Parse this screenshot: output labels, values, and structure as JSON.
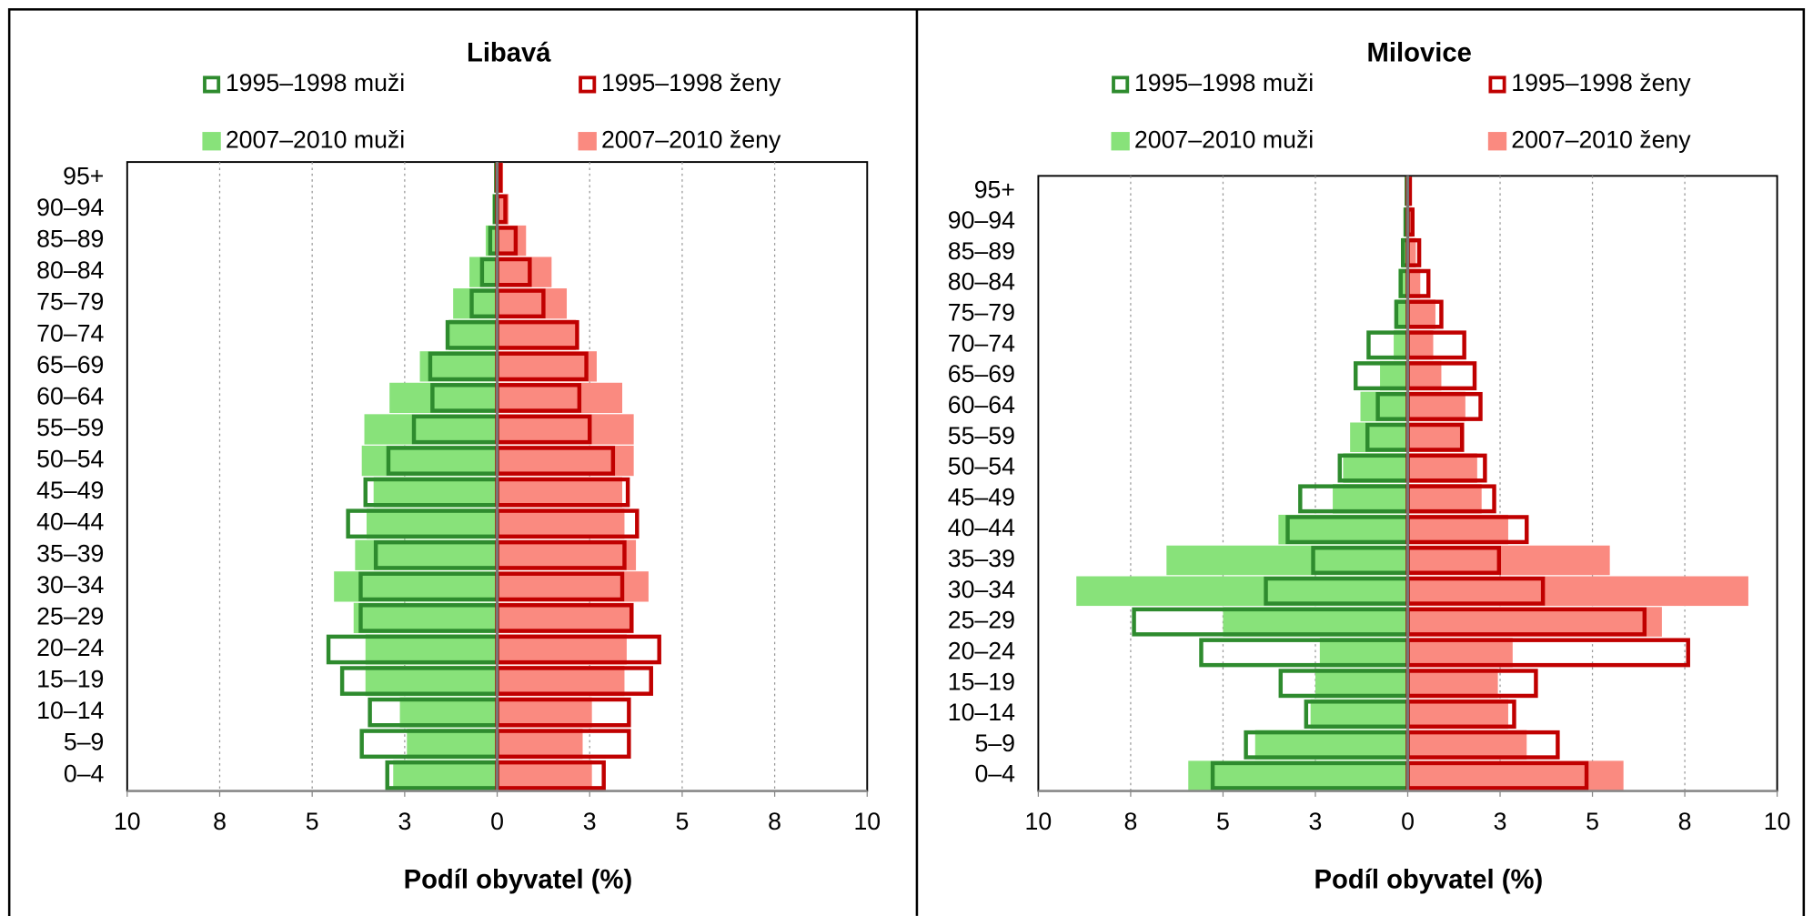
{
  "chart_data": [
    {
      "type": "pyramid",
      "title": "Libavá",
      "xlabel": "Podíl obyvatel (%)",
      "categories": [
        "0–4",
        "5–9",
        "10–14",
        "15–19",
        "20–24",
        "25–29",
        "30–34",
        "35–39",
        "40–44",
        "45–49",
        "50–54",
        "55–59",
        "60–64",
        "65–69",
        "70–74",
        "75–79",
        "80–84",
        "85–89",
        "90–94",
        "95+"
      ],
      "xlim": [
        -10,
        10
      ],
      "xticks": [
        {
          "value": -10,
          "label": "10"
        },
        {
          "value": -7.5,
          "label": "8"
        },
        {
          "value": -5,
          "label": "5"
        },
        {
          "value": -2.5,
          "label": "3"
        },
        0,
        {
          "value": 2.5,
          "label": "3"
        },
        {
          "value": 5,
          "label": "5"
        },
        {
          "value": 7.5,
          "label": "8"
        },
        10
      ],
      "grid": true,
      "series": [
        {
          "name": "2007–2010 muži",
          "color": "#88e27a",
          "style": "fill",
          "values": [
            -2.81,
            -2.44,
            -2.63,
            -3.56,
            -3.56,
            -3.88,
            -4.41,
            -3.84,
            -3.53,
            -3.34,
            -3.66,
            -3.59,
            -2.91,
            -2.09,
            -1.31,
            -1.19,
            -0.75,
            -0.31,
            -0.13,
            -0.06
          ]
        },
        {
          "name": "2007–2010 ženy",
          "color": "#fa8a80",
          "style": "fill",
          "values": [
            2.56,
            2.31,
            2.56,
            3.44,
            3.5,
            3.69,
            4.09,
            3.75,
            3.44,
            3.38,
            3.69,
            3.69,
            3.38,
            2.69,
            2.13,
            1.88,
            1.47,
            0.78,
            0.31,
            0.16
          ]
        },
        {
          "name": "1995–1998 muži",
          "color": "#2e8b2e",
          "style": "outline",
          "values": [
            -2.97,
            -3.66,
            -3.44,
            -4.19,
            -4.56,
            -3.69,
            -3.69,
            -3.28,
            -4.03,
            -3.56,
            -2.94,
            -2.25,
            -1.75,
            -1.81,
            -1.34,
            -0.69,
            -0.41,
            -0.19,
            -0.06,
            -0.03
          ]
        },
        {
          "name": "1995–1998 ženy",
          "color": "#c00000",
          "style": "outline",
          "values": [
            2.88,
            3.56,
            3.56,
            4.16,
            4.38,
            3.63,
            3.38,
            3.44,
            3.78,
            3.53,
            3.13,
            2.5,
            2.22,
            2.41,
            2.16,
            1.25,
            0.88,
            0.5,
            0.22,
            0.09
          ]
        }
      ]
    },
    {
      "type": "pyramid",
      "title": "Milovice",
      "xlabel": "Podíl obyvatel (%)",
      "categories": [
        "0–4",
        "5–9",
        "10–14",
        "15–19",
        "20–24",
        "25–29",
        "30–34",
        "35–39",
        "40–44",
        "45–49",
        "50–54",
        "55–59",
        "60–64",
        "65–69",
        "70–74",
        "75–79",
        "80–84",
        "85–89",
        "90–94",
        "95+"
      ],
      "xlim": [
        -10,
        10
      ],
      "xticks": [
        {
          "value": -10,
          "label": "10"
        },
        {
          "value": -7.5,
          "label": "8"
        },
        {
          "value": -5,
          "label": "5"
        },
        {
          "value": -2.5,
          "label": "3"
        },
        0,
        {
          "value": 2.5,
          "label": "3"
        },
        {
          "value": 5,
          "label": "5"
        },
        {
          "value": 7.5,
          "label": "8"
        },
        10
      ],
      "grid": true,
      "series": [
        {
          "name": "2007–2010 muži",
          "color": "#88e27a",
          "style": "fill",
          "values": [
            -5.94,
            -4.13,
            -2.63,
            -2.5,
            -2.38,
            -5.0,
            -8.97,
            -6.53,
            -3.5,
            -2.03,
            -1.75,
            -1.56,
            -1.28,
            -0.75,
            -0.38,
            -0.34,
            -0.25,
            -0.16,
            -0.09,
            -0.06
          ]
        },
        {
          "name": "2007–2010 ženy",
          "color": "#fa8a80",
          "style": "fill",
          "values": [
            5.84,
            3.22,
            2.72,
            2.44,
            2.84,
            6.88,
            9.22,
            5.47,
            2.72,
            2.0,
            1.88,
            1.53,
            1.56,
            0.91,
            0.69,
            0.75,
            0.34,
            0.22,
            0.13,
            0.09
          ]
        },
        {
          "name": "1995–1998 muži",
          "color": "#2e8b2e",
          "style": "outline",
          "values": [
            -5.28,
            -4.38,
            -2.75,
            -3.44,
            -5.59,
            -7.41,
            -3.84,
            -2.56,
            -3.25,
            -2.91,
            -1.84,
            -1.09,
            -0.81,
            -1.41,
            -1.06,
            -0.31,
            -0.19,
            -0.13,
            -0.06,
            -0.03
          ]
        },
        {
          "name": "1995–1998 ženy",
          "color": "#c00000",
          "style": "outline",
          "values": [
            4.84,
            4.06,
            2.88,
            3.47,
            7.59,
            6.41,
            3.66,
            2.47,
            3.22,
            2.34,
            2.09,
            1.47,
            1.97,
            1.81,
            1.53,
            0.91,
            0.56,
            0.31,
            0.13,
            0.06
          ]
        }
      ]
    }
  ]
}
